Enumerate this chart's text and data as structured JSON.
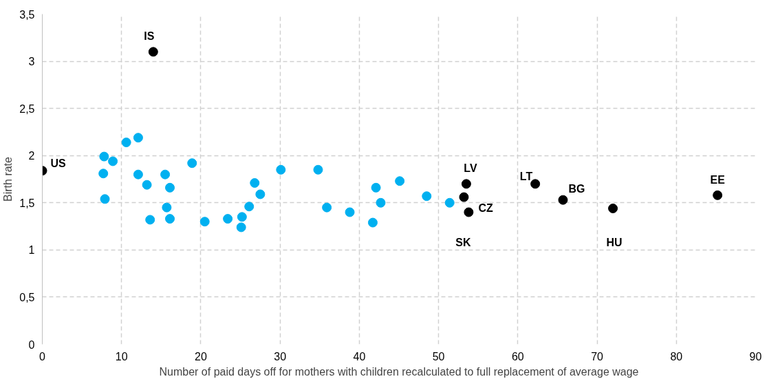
{
  "chart_data": {
    "type": "scatter",
    "xlabel": "Number of paid days off for mothers with children recalculated to full replacement of average wage",
    "ylabel": "Birth rate",
    "xlim": [
      0,
      90
    ],
    "xticks": [
      0,
      10,
      20,
      30,
      40,
      50,
      60,
      70,
      80,
      90
    ],
    "ylim": [
      0,
      3.5
    ],
    "yticks": [
      0,
      {
        "value": 0.5,
        "label": "0,5"
      },
      1,
      {
        "value": 1.5,
        "label": "1,5"
      },
      2,
      {
        "value": 2.5,
        "label": "2,5"
      },
      3,
      {
        "value": 3.5,
        "label": "3,5"
      }
    ],
    "grid": true,
    "marker": "circle",
    "series": [
      {
        "color": "#00b0f0",
        "x": [
          7.8,
          8.9,
          10.6,
          12.1,
          7.7,
          7.9,
          12.1,
          13.2,
          13.6,
          15.5,
          16.1,
          15.7,
          16.1,
          18.9,
          20.5,
          23.4,
          25.2,
          25.1,
          26.1,
          26.8,
          27.5,
          30.1,
          34.8,
          35.9,
          38.8,
          42.1,
          42.7,
          41.7,
          45.1,
          48.5,
          51.4
        ],
        "values": [
          1.99,
          1.94,
          2.14,
          2.19,
          1.81,
          1.54,
          1.8,
          1.69,
          1.32,
          1.8,
          1.66,
          1.45,
          1.33,
          1.92,
          1.3,
          1.33,
          1.35,
          1.24,
          1.46,
          1.71,
          1.59,
          1.85,
          1.85,
          1.45,
          1.4,
          1.66,
          1.5,
          1.29,
          1.73,
          1.57,
          1.5
        ]
      },
      {
        "color": "#000000",
        "x": [
          0,
          14.0,
          53.5,
          53.2,
          53.8,
          62.2,
          65.7,
          72.0,
          85.2
        ],
        "values": [
          1.84,
          3.1,
          1.7,
          1.56,
          1.4,
          1.7,
          1.53,
          1.44,
          1.58
        ]
      }
    ],
    "annotations": [
      {
        "text": "US",
        "x": 0,
        "y": 1.84
      },
      {
        "text": "IS",
        "x": 14.0,
        "y": 3.1
      },
      {
        "text": "LV",
        "x": 53.5,
        "y": 1.7
      },
      "SK",
      {
        "text": "CZ",
        "x": 53.8,
        "y": 1.4
      },
      {
        "text": "LT",
        "x": 62.2,
        "y": 1.7
      },
      {
        "text": "BG",
        "x": 65.7,
        "y": 1.53
      },
      {
        "text": "HU",
        "x": 72.0,
        "y": 1.44
      },
      {
        "text": "EE",
        "x": 85.2,
        "y": 1.58
      }
    ]
  }
}
